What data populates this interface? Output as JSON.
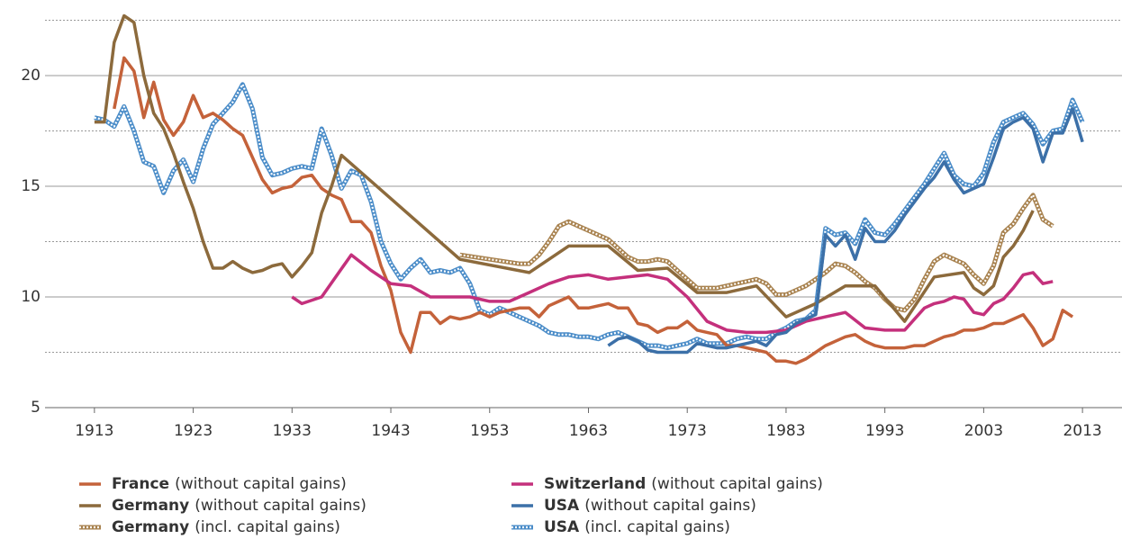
{
  "chart_data": {
    "type": "line",
    "xlim": [
      1908,
      2017
    ],
    "xticks": [
      1913,
      1923,
      1933,
      1943,
      1953,
      1963,
      1973,
      1983,
      1993,
      2003,
      2013
    ],
    "ylim": [
      5,
      22.6
    ],
    "yticks": [
      5,
      10,
      15,
      20
    ],
    "minor_grid": [
      7.5,
      12.5,
      17.5,
      22.5
    ],
    "grid": true,
    "legend": "bottom",
    "series": [
      {
        "name": "France",
        "qualifier": "(without capital gains)",
        "color": "#c4623a",
        "style": "solid",
        "x": [
          1915,
          1916,
          1917,
          1918,
          1919,
          1920,
          1921,
          1922,
          1923,
          1924,
          1925,
          1926,
          1927,
          1928,
          1929,
          1930,
          1931,
          1932,
          1933,
          1934,
          1935,
          1936,
          1937,
          1938,
          1939,
          1940,
          1941,
          1942,
          1943,
          1944,
          1945,
          1946,
          1947,
          1948,
          1949,
          1950,
          1951,
          1952,
          1953,
          1954,
          1955,
          1956,
          1957,
          1958,
          1959,
          1960,
          1961,
          1962,
          1963,
          1964,
          1965,
          1966,
          1967,
          1968,
          1969,
          1970,
          1971,
          1972,
          1973,
          1974,
          1975,
          1976,
          1977,
          1978,
          1979,
          1980,
          1981,
          1982,
          1983,
          1984,
          1985,
          1986,
          1987,
          1988,
          1989,
          1990,
          1991,
          1992,
          1993,
          1994,
          1995,
          1996,
          1997,
          1998,
          1999,
          2000,
          2001,
          2002,
          2003,
          2004,
          2005,
          2006,
          2007,
          2008,
          2009,
          2010,
          2011,
          2012
        ],
        "values": [
          18.5,
          20.8,
          20.2,
          18.1,
          19.7,
          18.0,
          17.3,
          17.9,
          19.1,
          18.1,
          18.3,
          18.0,
          17.6,
          17.3,
          16.3,
          15.3,
          14.7,
          14.9,
          15.0,
          15.4,
          15.5,
          14.9,
          14.6,
          14.4,
          13.4,
          13.4,
          12.9,
          11.4,
          10.3,
          8.4,
          7.5,
          9.3,
          9.3,
          8.8,
          9.1,
          9.0,
          9.1,
          9.3,
          9.1,
          9.3,
          9.4,
          9.5,
          9.5,
          9.1,
          9.6,
          9.8,
          10.0,
          9.5,
          9.5,
          9.6,
          9.7,
          9.5,
          9.5,
          8.8,
          8.7,
          8.4,
          8.6,
          8.6,
          8.9,
          8.5,
          8.4,
          8.3,
          7.8,
          7.8,
          7.7,
          7.6,
          7.5,
          7.1,
          7.1,
          7.0,
          7.2,
          7.5,
          7.8,
          8.0,
          8.2,
          8.3,
          8.0,
          7.8,
          7.7,
          7.7,
          7.7,
          7.8,
          7.8,
          8.0,
          8.2,
          8.3,
          8.5,
          8.5,
          8.6,
          8.8,
          8.8,
          9.0,
          9.2,
          8.6,
          7.8,
          8.1,
          9.4,
          9.1
        ]
      },
      {
        "name": "Germany",
        "qualifier": "(without capital gains)",
        "color": "#8c6a3c",
        "style": "solid",
        "x": [
          1913,
          1914,
          1915,
          1916,
          1917,
          1918,
          1919,
          1920,
          1921,
          1922,
          1923,
          1924,
          1925,
          1926,
          1927,
          1928,
          1929,
          1930,
          1931,
          1932,
          1933,
          1934,
          1935,
          1936,
          1937,
          1938,
          1950,
          1957,
          1961,
          1965,
          1968,
          1971,
          1974,
          1977,
          1980,
          1983,
          1986,
          1989,
          1992,
          1995,
          1998,
          2001,
          2002,
          2003,
          2004,
          2005,
          2006,
          2007,
          2008
        ],
        "values": [
          17.9,
          17.9,
          21.5,
          22.7,
          22.4,
          20.0,
          18.3,
          17.6,
          16.5,
          15.2,
          14.0,
          12.5,
          11.3,
          11.3,
          11.6,
          11.3,
          11.1,
          11.2,
          11.4,
          11.5,
          10.9,
          11.4,
          12.0,
          13.8,
          15.0,
          16.4,
          11.7,
          11.1,
          12.3,
          12.3,
          11.2,
          11.3,
          10.2,
          10.2,
          10.5,
          9.1,
          9.7,
          10.5,
          10.5,
          8.9,
          10.9,
          11.1,
          10.4,
          10.1,
          10.5,
          11.8,
          12.3,
          13.0,
          13.9
        ]
      },
      {
        "name": "Germany",
        "qualifier": "(incl. capital gains)",
        "color": "#a8824f",
        "style": "diamond-chain",
        "x": [
          1950,
          1953,
          1956,
          1957,
          1958,
          1959,
          1960,
          1961,
          1962,
          1963,
          1964,
          1965,
          1966,
          1967,
          1968,
          1969,
          1970,
          1971,
          1972,
          1973,
          1974,
          1975,
          1976,
          1977,
          1978,
          1979,
          1980,
          1981,
          1982,
          1983,
          1984,
          1985,
          1986,
          1987,
          1988,
          1989,
          1990,
          1991,
          1992,
          1993,
          1994,
          1995,
          1996,
          1997,
          1998,
          1999,
          2000,
          2001,
          2002,
          2003,
          2004,
          2005,
          2006,
          2007,
          2008,
          2009,
          2010
        ],
        "values": [
          11.9,
          11.7,
          11.5,
          11.5,
          11.9,
          12.5,
          13.2,
          13.4,
          13.2,
          13.0,
          12.8,
          12.6,
          12.2,
          11.8,
          11.6,
          11.6,
          11.7,
          11.6,
          11.2,
          10.8,
          10.4,
          10.4,
          10.4,
          10.5,
          10.6,
          10.7,
          10.8,
          10.6,
          10.1,
          10.1,
          10.3,
          10.5,
          10.8,
          11.1,
          11.5,
          11.4,
          11.1,
          10.7,
          10.4,
          9.9,
          9.5,
          9.4,
          9.9,
          10.8,
          11.6,
          11.9,
          11.7,
          11.5,
          11.0,
          10.6,
          11.4,
          12.9,
          13.3,
          14.0,
          14.6,
          13.5,
          13.2
        ]
      },
      {
        "name": "Switzerland",
        "qualifier": "(without capital gains)",
        "color": "#c4307c",
        "style": "solid",
        "x": [
          1933,
          1934,
          1936,
          1939,
          1941,
          1943,
          1945,
          1947,
          1951,
          1953,
          1955,
          1957,
          1959,
          1961,
          1963,
          1965,
          1967,
          1969,
          1971,
          1973,
          1975,
          1977,
          1979,
          1981,
          1983,
          1985,
          1987,
          1989,
          1991,
          1993,
          1995,
          1996,
          1997,
          1998,
          1999,
          2000,
          2001,
          2002,
          2003,
          2004,
          2005,
          2006,
          2007,
          2008,
          2009,
          2010
        ],
        "values": [
          10.0,
          9.7,
          10.0,
          11.9,
          11.2,
          10.6,
          10.5,
          10.0,
          10.0,
          9.8,
          9.8,
          10.2,
          10.6,
          10.9,
          11.0,
          10.8,
          10.9,
          11.0,
          10.8,
          10.0,
          8.9,
          8.5,
          8.4,
          8.4,
          8.5,
          8.9,
          9.1,
          9.3,
          8.6,
          8.5,
          8.5,
          9.0,
          9.5,
          9.7,
          9.8,
          10.0,
          9.9,
          9.3,
          9.2,
          9.7,
          9.9,
          10.4,
          11.0,
          11.1,
          10.6,
          10.7
        ]
      },
      {
        "name": "USA",
        "qualifier": "(without capital gains)",
        "color": "#3c70a8",
        "style": "solid",
        "x": [
          1965,
          1966,
          1967,
          1968,
          1969,
          1970,
          1971,
          1972,
          1973,
          1974,
          1975,
          1976,
          1977,
          1978,
          1979,
          1980,
          1981,
          1982,
          1983,
          1984,
          1985,
          1986,
          1987,
          1988,
          1989,
          1990,
          1991,
          1992,
          1993,
          1994,
          1995,
          1996,
          1997,
          1998,
          1999,
          2000,
          2001,
          2002,
          2003,
          2004,
          2005,
          2006,
          2007,
          2008,
          2009,
          2010,
          2011,
          2012,
          2013
        ],
        "values": [
          7.8,
          8.1,
          8.2,
          8.0,
          7.6,
          7.5,
          7.5,
          7.5,
          7.5,
          7.9,
          7.8,
          7.7,
          7.7,
          7.8,
          7.9,
          8.0,
          7.8,
          8.3,
          8.4,
          8.8,
          9.0,
          9.2,
          12.8,
          12.3,
          12.8,
          11.7,
          13.1,
          12.5,
          12.5,
          13.0,
          13.7,
          14.3,
          14.9,
          15.4,
          16.1,
          15.3,
          14.7,
          14.9,
          15.1,
          16.3,
          17.6,
          17.9,
          18.1,
          17.6,
          16.1,
          17.4,
          17.4,
          18.5,
          17.0
        ]
      },
      {
        "name": "USA",
        "qualifier": "(incl. capital gains)",
        "color": "#4a8cc8",
        "style": "diamond-chain",
        "x": [
          1913,
          1914,
          1915,
          1916,
          1917,
          1918,
          1919,
          1920,
          1921,
          1922,
          1923,
          1924,
          1925,
          1926,
          1927,
          1928,
          1929,
          1930,
          1931,
          1932,
          1933,
          1934,
          1935,
          1936,
          1937,
          1938,
          1939,
          1940,
          1941,
          1942,
          1943,
          1944,
          1945,
          1946,
          1947,
          1948,
          1949,
          1950,
          1951,
          1952,
          1953,
          1954,
          1955,
          1956,
          1957,
          1958,
          1959,
          1960,
          1961,
          1962,
          1963,
          1964,
          1965,
          1966,
          1967,
          1968,
          1969,
          1970,
          1971,
          1972,
          1973,
          1974,
          1975,
          1976,
          1977,
          1978,
          1979,
          1980,
          1981,
          1982,
          1983,
          1984,
          1985,
          1986,
          1987,
          1988,
          1989,
          1990,
          1991,
          1992,
          1993,
          1994,
          1995,
          1996,
          1997,
          1998,
          1999,
          2000,
          2001,
          2002,
          2003,
          2004,
          2005,
          2006,
          2007,
          2008,
          2009,
          2010,
          2011,
          2012,
          2013
        ],
        "values": [
          18.1,
          18.0,
          17.7,
          18.6,
          17.5,
          16.1,
          15.9,
          14.7,
          15.7,
          16.2,
          15.2,
          16.7,
          17.8,
          18.3,
          18.8,
          19.6,
          18.5,
          16.3,
          15.5,
          15.6,
          15.8,
          15.9,
          15.8,
          17.6,
          16.4,
          14.9,
          15.7,
          15.5,
          14.3,
          12.5,
          11.5,
          10.8,
          11.3,
          11.7,
          11.1,
          11.2,
          11.1,
          11.3,
          10.6,
          9.4,
          9.2,
          9.5,
          9.3,
          9.1,
          8.9,
          8.7,
          8.4,
          8.3,
          8.3,
          8.2,
          8.2,
          8.1,
          8.3,
          8.4,
          8.2,
          8.0,
          7.8,
          7.8,
          7.7,
          7.8,
          7.9,
          8.1,
          7.9,
          7.9,
          7.9,
          8.1,
          8.2,
          8.1,
          8.1,
          8.4,
          8.6,
          8.9,
          9.0,
          9.4,
          13.1,
          12.8,
          12.9,
          12.4,
          13.5,
          12.9,
          12.8,
          13.3,
          13.9,
          14.5,
          15.1,
          15.8,
          16.5,
          15.5,
          15.1,
          15.0,
          15.6,
          17.0,
          17.9,
          18.1,
          18.3,
          17.8,
          16.9,
          17.5,
          17.6,
          18.9,
          17.9
        ]
      }
    ]
  }
}
